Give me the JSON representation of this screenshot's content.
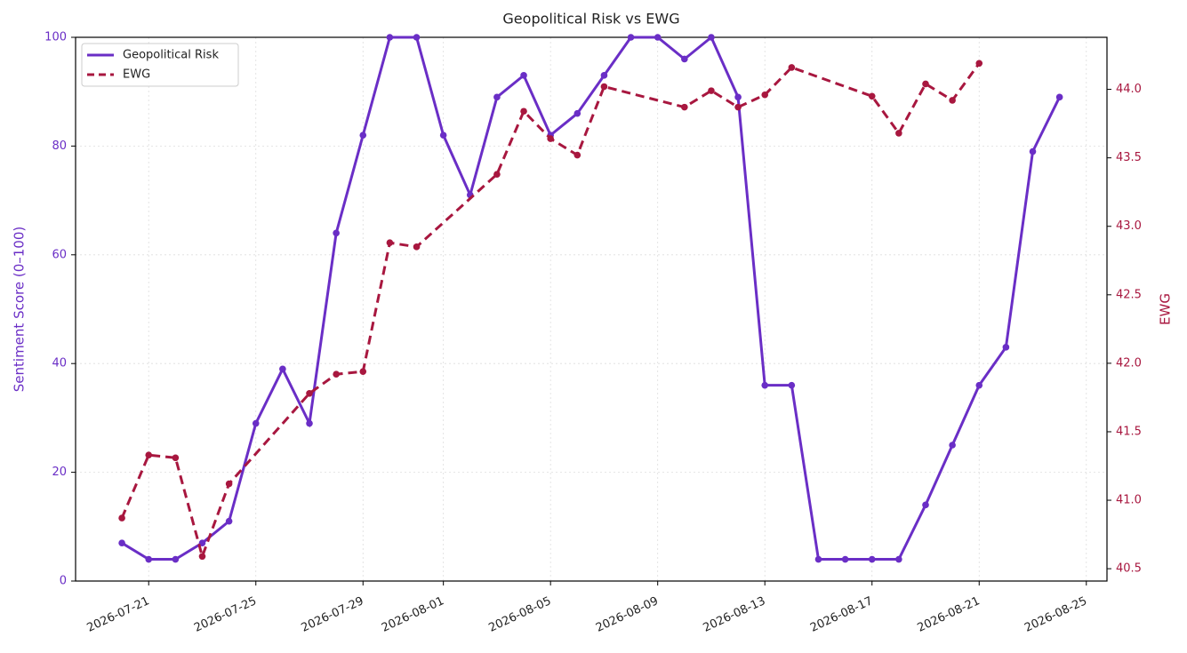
{
  "chart_data": {
    "type": "line",
    "title": "Geopolitical Risk vs EWG",
    "ylabel": "Sentiment Score (0–100)",
    "y2label": "EWG",
    "xlim": [
      "2026-07-18T06:30",
      "2026-08-25T18:30"
    ],
    "xticks": [
      "2026-07-21",
      "2026-07-25",
      "2026-07-29",
      "2026-08-01",
      "2026-08-05",
      "2026-08-09",
      "2026-08-13",
      "2026-08-17",
      "2026-08-21",
      "2026-08-25"
    ],
    "ylim": [
      0,
      100
    ],
    "yticks": [
      0,
      20,
      40,
      60,
      80,
      100
    ],
    "y2lim": [
      40.41,
      44.38
    ],
    "y2ticks": [
      40.5,
      {
        "value": 41.0,
        "label": "41.0"
      },
      41.5,
      {
        "value": 42.0,
        "label": "42.0"
      },
      42.5,
      {
        "value": 43.0,
        "label": "43.0"
      },
      43.5,
      {
        "value": 44.0,
        "label": "44.0"
      }
    ],
    "grid": true,
    "legend": "upper left",
    "series": [
      {
        "name": "Geopolitical Risk",
        "color": "#6a2ec6",
        "dash": false,
        "x": [
          "2026-07-20",
          "2026-07-21",
          "2026-07-22",
          "2026-07-23",
          "2026-07-24",
          "2026-07-25",
          "2026-07-26",
          "2026-07-27",
          "2026-07-28",
          "2026-07-29",
          "2026-07-30",
          "2026-07-31",
          "2026-08-01",
          "2026-08-02",
          "2026-08-03",
          "2026-08-04",
          "2026-08-05",
          "2026-08-06",
          "2026-08-07",
          "2026-08-08",
          "2026-08-09",
          "2026-08-10",
          "2026-08-11",
          "2026-08-12",
          "2026-08-13",
          "2026-08-14",
          "2026-08-15",
          "2026-08-16",
          "2026-08-17",
          "2026-08-18",
          "2026-08-19",
          "2026-08-20",
          "2026-08-21",
          "2026-08-22",
          "2026-08-23",
          "2026-08-24"
        ],
        "values": [
          7,
          4,
          4,
          7,
          11,
          29,
          39,
          29,
          64,
          82,
          100,
          100,
          82,
          71,
          89,
          93,
          82,
          86,
          93,
          100,
          100,
          96,
          100,
          89,
          36,
          36,
          4,
          4,
          4,
          4,
          14,
          25,
          36,
          43,
          79,
          89
        ]
      },
      {
        "name": "EWG",
        "color": "#a8173f",
        "dash": true,
        "axis": "y2",
        "x": [
          "2026-07-20",
          "2026-07-21",
          "2026-07-22",
          "2026-07-23",
          "2026-07-24",
          "2026-07-27",
          "2026-07-28",
          "2026-07-29",
          "2026-07-30",
          "2026-07-31",
          "2026-08-03",
          "2026-08-04",
          "2026-08-05",
          "2026-08-06",
          "2026-08-07",
          "2026-08-10",
          "2026-08-11",
          "2026-08-12",
          "2026-08-13",
          "2026-08-14",
          "2026-08-17",
          "2026-08-18",
          "2026-08-19",
          "2026-08-20",
          "2026-08-21"
        ],
        "values": [
          40.87,
          41.33,
          41.31,
          40.59,
          41.12,
          41.78,
          41.92,
          41.94,
          42.88,
          42.85,
          43.38,
          43.84,
          43.64,
          43.52,
          44.02,
          43.87,
          43.99,
          43.87,
          43.96,
          44.16,
          43.95,
          43.68,
          44.04,
          43.92,
          44.19
        ]
      }
    ]
  }
}
